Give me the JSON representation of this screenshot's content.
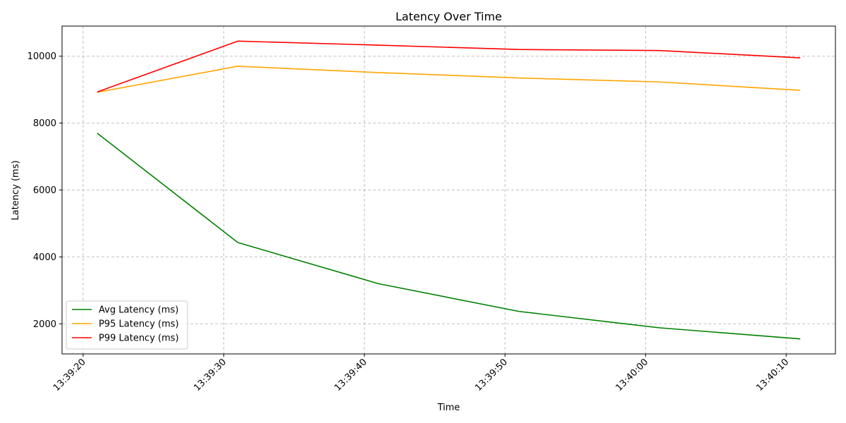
{
  "chart_data": {
    "type": "line",
    "title": "Latency Over Time",
    "xlabel": "Time",
    "ylabel": "Latency (ms)",
    "x_axis_type": "time",
    "xlim": [
      "13:39:18.5",
      "13:40:13.5"
    ],
    "ylim": [
      1100,
      10900
    ],
    "x_ticks": [
      "13:39:20",
      "13:39:30",
      "13:39:40",
      "13:39:50",
      "13:40:00",
      "13:40:10"
    ],
    "y_ticks": [
      2000,
      4000,
      6000,
      8000,
      10000
    ],
    "grid": true,
    "legend_position": "lower-left",
    "x": [
      "13:39:21",
      "13:39:31",
      "13:39:41",
      "13:39:51",
      "13:40:01",
      "13:40:11"
    ],
    "series": [
      {
        "name": "Avg Latency (ms)",
        "color": "#008000",
        "values": [
          7700,
          4430,
          3200,
          2370,
          1880,
          1550
        ]
      },
      {
        "name": "P95 Latency (ms)",
        "color": "#ffa500",
        "values": [
          8920,
          9700,
          9510,
          9350,
          9230,
          8980
        ]
      },
      {
        "name": "P99 Latency (ms)",
        "color": "#ff0000",
        "values": [
          8930,
          10450,
          10330,
          10200,
          10170,
          9950
        ]
      }
    ]
  }
}
